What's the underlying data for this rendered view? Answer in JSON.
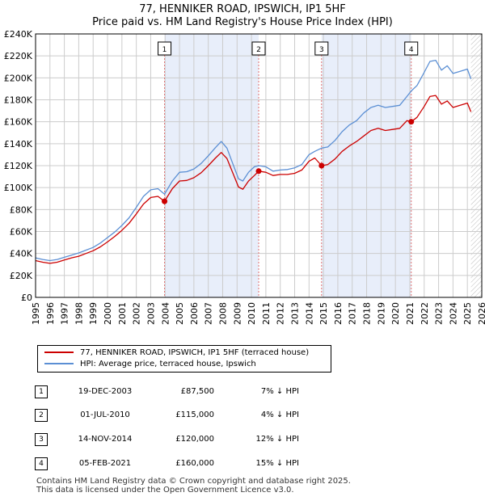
{
  "title": {
    "line1": "77, HENNIKER ROAD, IPSWICH, IP1 5HF",
    "line2": "Price paid vs. HM Land Registry's House Price Index (HPI)"
  },
  "legend": {
    "property": "77, HENNIKER ROAD, IPSWICH, IP1 5HF (terraced house)",
    "hpi": "HPI: Average price, terraced house, Ipswich"
  },
  "transactions": [
    {
      "n": "1",
      "date": "19-DEC-2003",
      "price": "£87,500",
      "hpi": "7% ↓ HPI"
    },
    {
      "n": "2",
      "date": "01-JUL-2010",
      "price": "£115,000",
      "hpi": "4% ↓ HPI"
    },
    {
      "n": "3",
      "date": "14-NOV-2014",
      "price": "£120,000",
      "hpi": "12% ↓ HPI"
    },
    {
      "n": "4",
      "date": "05-FEB-2021",
      "price": "£160,000",
      "hpi": "15% ↓ HPI"
    }
  ],
  "footer": {
    "line1": "Contains HM Land Registry data © Crown copyright and database right 2025.",
    "line2": "This data is licensed under the Open Government Licence v3.0."
  },
  "colors": {
    "property": "#cc0000",
    "hpi": "#5b8fd4",
    "band": "#e8eefa",
    "grid": "#cccccc",
    "marker_line": "#e07070"
  },
  "chart_data": {
    "type": "line",
    "title": "77, HENNIKER ROAD, IPSWICH, IP1 5HF — Price paid vs. HM Land Registry's House Price Index (HPI)",
    "xlabel": "",
    "ylabel": "",
    "xlim": [
      1995,
      2026
    ],
    "ylim": [
      0,
      240000
    ],
    "y_ticks": [
      0,
      20000,
      40000,
      60000,
      80000,
      100000,
      120000,
      140000,
      160000,
      180000,
      200000,
      220000,
      240000
    ],
    "y_tick_labels": [
      "£0",
      "£20K",
      "£40K",
      "£60K",
      "£80K",
      "£100K",
      "£120K",
      "£140K",
      "£160K",
      "£180K",
      "£200K",
      "£220K",
      "£240K"
    ],
    "x_ticks": [
      1995,
      1996,
      1997,
      1998,
      1999,
      2000,
      2001,
      2002,
      2003,
      2004,
      2005,
      2006,
      2007,
      2008,
      2009,
      2010,
      2011,
      2012,
      2013,
      2014,
      2015,
      2016,
      2017,
      2018,
      2019,
      2020,
      2021,
      2022,
      2023,
      2024,
      2025,
      2026
    ],
    "grid": true,
    "data_end": 2025.25,
    "series": [
      {
        "name": "HPI: Average price, terraced house, Ipswich",
        "x": [
          1995,
          1995.5,
          1996,
          1996.5,
          1997,
          1997.5,
          1998,
          1998.5,
          1999,
          1999.5,
          2000,
          2000.5,
          2001,
          2001.5,
          2002,
          2002.5,
          2003,
          2003.5,
          2003.96,
          2004.5,
          2005,
          2005.5,
          2006,
          2006.5,
          2007,
          2007.5,
          2007.9,
          2008.3,
          2008.7,
          2009.1,
          2009.4,
          2009.8,
          2010.2,
          2010.5,
          2011,
          2011.5,
          2012,
          2012.5,
          2013,
          2013.5,
          2014,
          2014.4,
          2014.87,
          2015.3,
          2015.8,
          2016.3,
          2016.8,
          2017.3,
          2017.8,
          2018.3,
          2018.8,
          2019.3,
          2019.8,
          2020.3,
          2020.8,
          2021.1,
          2021.5,
          2022,
          2022.4,
          2022.8,
          2023.2,
          2023.6,
          2024,
          2024.5,
          2025,
          2025.25
        ],
        "values": [
          36000,
          34500,
          33500,
          34500,
          36500,
          38500,
          40500,
          43000,
          45500,
          49500,
          54500,
          59500,
          65500,
          72500,
          82000,
          92000,
          98000,
          99000,
          94000,
          106000,
          114000,
          114500,
          117000,
          122000,
          129000,
          136500,
          142000,
          136000,
          122000,
          108000,
          106000,
          114000,
          119000,
          120000,
          119000,
          115000,
          116000,
          116500,
          118000,
          121000,
          130000,
          133000,
          136000,
          137000,
          143000,
          151000,
          157000,
          161000,
          168000,
          173000,
          175000,
          173000,
          174000,
          175000,
          183000,
          188000,
          193000,
          205000,
          215000,
          216000,
          207000,
          211000,
          204000,
          206000,
          208000,
          199000
        ]
      },
      {
        "name": "77, HENNIKER ROAD, IPSWICH, IP1 5HF (terraced house)",
        "x": [
          1995,
          1995.5,
          1996,
          1996.5,
          1997,
          1997.5,
          1998,
          1998.5,
          1999,
          1999.5,
          2000,
          2000.5,
          2001,
          2001.5,
          2002,
          2002.5,
          2003,
          2003.5,
          2003.96,
          2004.5,
          2005,
          2005.5,
          2006,
          2006.5,
          2007,
          2007.5,
          2007.9,
          2008.3,
          2008.7,
          2009.1,
          2009.4,
          2009.8,
          2010.2,
          2010.5,
          2011,
          2011.5,
          2012,
          2012.5,
          2013,
          2013.5,
          2014,
          2014.4,
          2014.87,
          2015.3,
          2015.8,
          2016.3,
          2016.8,
          2017.3,
          2017.8,
          2018.3,
          2018.8,
          2019.3,
          2019.8,
          2020.3,
          2020.8,
          2021.1,
          2021.5,
          2022,
          2022.4,
          2022.8,
          2023.2,
          2023.6,
          2024,
          2024.5,
          2025,
          2025.25
        ],
        "values": [
          33500,
          32000,
          31000,
          32000,
          34000,
          36000,
          37500,
          40000,
          42500,
          46000,
          50500,
          55500,
          61000,
          67500,
          76000,
          85000,
          91000,
          92000,
          87500,
          99000,
          106000,
          106500,
          109000,
          113500,
          120000,
          127000,
          132000,
          126500,
          113500,
          100500,
          98500,
          106000,
          111000,
          115000,
          114000,
          111000,
          112000,
          112000,
          113000,
          116000,
          124000,
          127000,
          120000,
          121000,
          126000,
          133000,
          138000,
          142000,
          147000,
          152000,
          154000,
          152000,
          153000,
          154000,
          161000,
          160000,
          164000,
          174000,
          183000,
          184000,
          176000,
          179000,
          173000,
          175000,
          177000,
          169000
        ]
      }
    ],
    "sale_points": [
      {
        "label": "1",
        "x": 2003.96,
        "value": 87500
      },
      {
        "label": "2",
        "x": 2010.5,
        "value": 115000
      },
      {
        "label": "3",
        "x": 2014.87,
        "value": 120000
      },
      {
        "label": "4",
        "x": 2021.1,
        "value": 160000
      }
    ],
    "shaded_periods": [
      [
        2003.96,
        2010.5
      ],
      [
        2014.87,
        2021.1
      ]
    ]
  }
}
